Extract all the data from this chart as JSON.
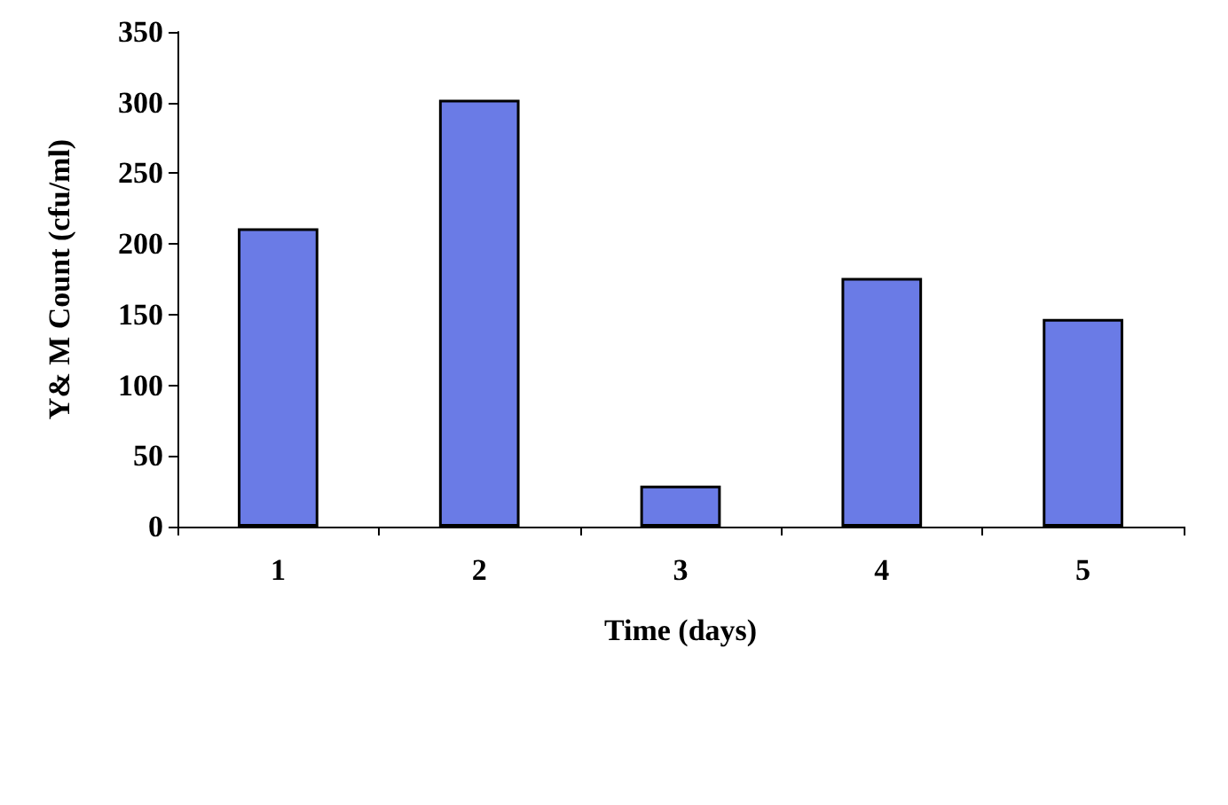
{
  "chart_data": {
    "type": "bar",
    "xlabel": "Time (days)",
    "ylabel": "Y& M Count (cfu/ml)",
    "categories": [
      "1",
      "2",
      "3",
      "4",
      "5"
    ],
    "series": [
      {
        "color": "#6a7be6",
        "values": [
          211,
          302,
          29,
          176,
          147
        ]
      }
    ],
    "ylim": [
      0,
      350
    ],
    "yticks": [
      0,
      50,
      100,
      150,
      200,
      250,
      300,
      350
    ],
    "grid": false
  }
}
